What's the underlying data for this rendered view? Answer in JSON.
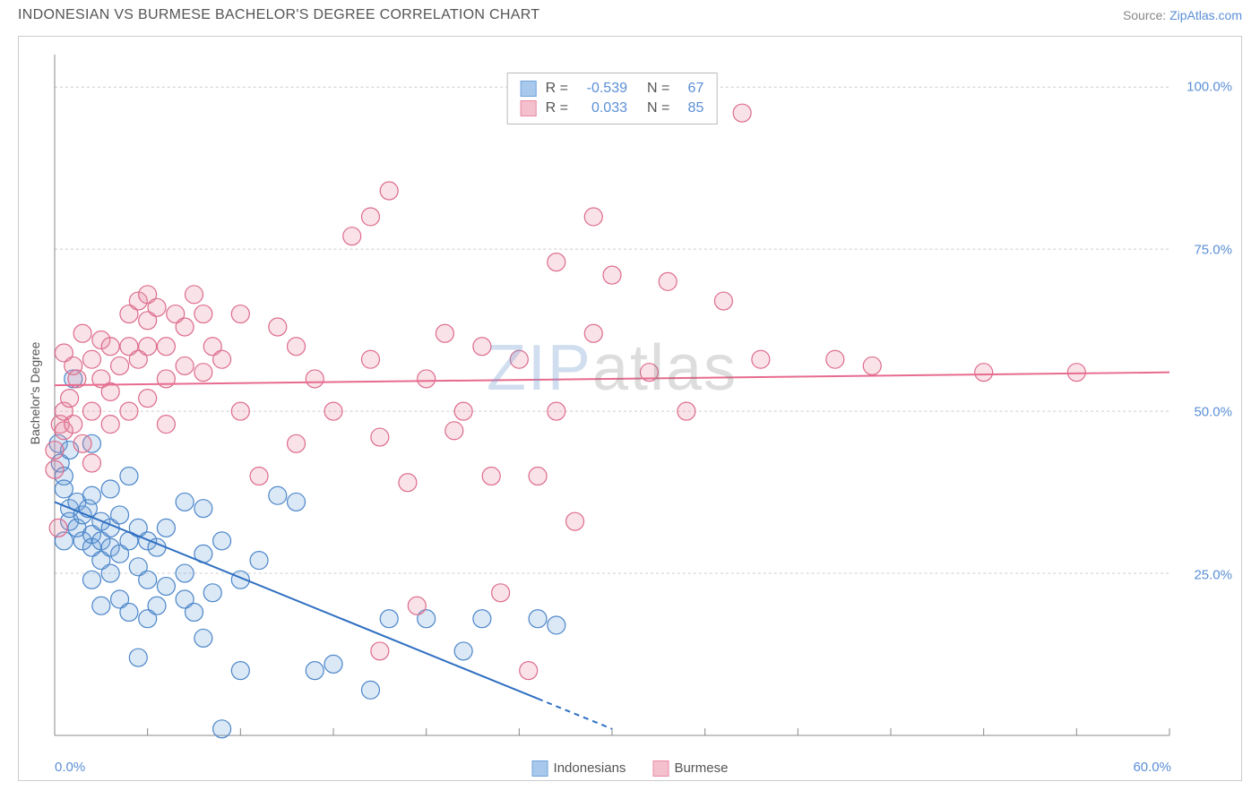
{
  "header": {
    "title": "INDONESIAN VS BURMESE BACHELOR'S DEGREE CORRELATION CHART",
    "source_label": "Source: ",
    "source_name": "ZipAtlas.com"
  },
  "chart": {
    "type": "scatter",
    "ylabel": "Bachelor's Degree",
    "background_color": "#ffffff",
    "border_color": "#cccccc",
    "grid_color": "#cccccc",
    "grid_dash": "3,3",
    "axis_color": "#888888",
    "tick_label_color": "#5b8fd6",
    "label_color": "#555555",
    "label_fontsize": 14,
    "tick_fontsize": 15,
    "xlim": [
      0,
      60
    ],
    "ylim": [
      0,
      105
    ],
    "x_ticks": [
      0,
      5,
      10,
      15,
      20,
      25,
      30,
      35,
      40,
      45,
      50,
      55,
      60
    ],
    "x_tick_labels": {
      "0": "0.0%",
      "60": "60.0%"
    },
    "y_gridlines": [
      25,
      50,
      75,
      100
    ],
    "y_tick_labels": {
      "25": "25.0%",
      "50": "50.0%",
      "75": "75.0%",
      "100": "100.0%"
    },
    "watermark": {
      "part1": "ZIP",
      "part2": "atlas"
    },
    "marker_radius": 10,
    "marker_border_width": 1.2,
    "marker_fill_opacity": 0.25,
    "line_width": 2,
    "bottom_legend": [
      {
        "label": "Indonesians",
        "fill": "#a8c8ec",
        "border": "#6fa4dd"
      },
      {
        "label": "Burmese",
        "fill": "#f4c0cd",
        "border": "#e98ba5"
      }
    ],
    "stats_box": {
      "border_color": "#bbbbbb",
      "rows": [
        {
          "swatch_fill": "#a8c8ec",
          "swatch_border": "#6fa4dd",
          "r_label": "R =",
          "r_value": "-0.539",
          "n_label": "N =",
          "n_value": "67"
        },
        {
          "swatch_fill": "#f4c0cd",
          "swatch_border": "#e98ba5",
          "r_label": "R =",
          "r_value": "0.033",
          "n_label": "N =",
          "n_value": "85"
        }
      ]
    },
    "series": [
      {
        "name": "Indonesians",
        "marker_fill": "#6fa4dd",
        "marker_border": "#4a85c9",
        "line_color": "#2f6fc1",
        "trend": {
          "x1": 0,
          "y1": 36,
          "x2": 30,
          "y2": 1,
          "dash_after_x": 26
        },
        "points": [
          [
            0.2,
            45
          ],
          [
            0.3,
            42
          ],
          [
            0.5,
            40
          ],
          [
            0.5,
            38
          ],
          [
            0.8,
            44
          ],
          [
            0.8,
            35
          ],
          [
            0.8,
            33
          ],
          [
            0.5,
            30
          ],
          [
            1.0,
            55
          ],
          [
            1.2,
            36
          ],
          [
            1.2,
            32
          ],
          [
            1.5,
            34
          ],
          [
            1.5,
            30
          ],
          [
            1.8,
            35
          ],
          [
            2.0,
            45
          ],
          [
            2.0,
            37
          ],
          [
            2.0,
            31
          ],
          [
            2.0,
            29
          ],
          [
            2.0,
            24
          ],
          [
            2.5,
            33
          ],
          [
            2.5,
            30
          ],
          [
            2.5,
            27
          ],
          [
            2.5,
            20
          ],
          [
            3.0,
            38
          ],
          [
            3.0,
            32
          ],
          [
            3.0,
            29
          ],
          [
            3.0,
            25
          ],
          [
            3.5,
            34
          ],
          [
            3.5,
            28
          ],
          [
            3.5,
            21
          ],
          [
            4.0,
            40
          ],
          [
            4.0,
            30
          ],
          [
            4.0,
            19
          ],
          [
            4.5,
            32
          ],
          [
            4.5,
            26
          ],
          [
            4.5,
            12
          ],
          [
            5.0,
            30
          ],
          [
            5.0,
            24
          ],
          [
            5.0,
            18
          ],
          [
            5.5,
            29
          ],
          [
            5.5,
            20
          ],
          [
            6.0,
            32
          ],
          [
            6.0,
            23
          ],
          [
            7.0,
            36
          ],
          [
            7.0,
            25
          ],
          [
            7.0,
            21
          ],
          [
            7.5,
            19
          ],
          [
            8.0,
            35
          ],
          [
            8.0,
            28
          ],
          [
            8.0,
            15
          ],
          [
            8.5,
            22
          ],
          [
            9.0,
            30
          ],
          [
            9.0,
            1
          ],
          [
            10.0,
            24
          ],
          [
            10.0,
            10
          ],
          [
            11.0,
            27
          ],
          [
            12.0,
            37
          ],
          [
            13.0,
            36
          ],
          [
            14.0,
            10
          ],
          [
            15.0,
            11
          ],
          [
            17.0,
            7
          ],
          [
            18.0,
            18
          ],
          [
            20.0,
            18
          ],
          [
            22.0,
            13
          ],
          [
            23.0,
            18
          ],
          [
            26.0,
            18
          ],
          [
            27.0,
            17
          ]
        ]
      },
      {
        "name": "Burmese",
        "marker_fill": "#e98ba5",
        "marker_border": "#dd6a8b",
        "line_color": "#e76b8f",
        "trend": {
          "x1": 0,
          "y1": 54,
          "x2": 60,
          "y2": 56
        },
        "points": [
          [
            0.0,
            44
          ],
          [
            0.0,
            41
          ],
          [
            0.2,
            32
          ],
          [
            0.3,
            48
          ],
          [
            0.5,
            47
          ],
          [
            0.5,
            50
          ],
          [
            0.5,
            59
          ],
          [
            0.8,
            52
          ],
          [
            1.0,
            57
          ],
          [
            1.0,
            48
          ],
          [
            1.2,
            55
          ],
          [
            1.5,
            62
          ],
          [
            1.5,
            45
          ],
          [
            2.0,
            58
          ],
          [
            2.0,
            50
          ],
          [
            2.0,
            42
          ],
          [
            2.5,
            61
          ],
          [
            2.5,
            55
          ],
          [
            3.0,
            60
          ],
          [
            3.0,
            53
          ],
          [
            3.0,
            48
          ],
          [
            3.5,
            57
          ],
          [
            4.0,
            65
          ],
          [
            4.0,
            60
          ],
          [
            4.0,
            50
          ],
          [
            4.5,
            67
          ],
          [
            4.5,
            58
          ],
          [
            5.0,
            68
          ],
          [
            5.0,
            60
          ],
          [
            5.0,
            52
          ],
          [
            5.0,
            64
          ],
          [
            5.5,
            66
          ],
          [
            6.0,
            60
          ],
          [
            6.0,
            55
          ],
          [
            6.0,
            48
          ],
          [
            6.5,
            65
          ],
          [
            7.0,
            63
          ],
          [
            7.0,
            57
          ],
          [
            7.5,
            68
          ],
          [
            8.0,
            65
          ],
          [
            8.0,
            56
          ],
          [
            8.5,
            60
          ],
          [
            9.0,
            58
          ],
          [
            10.0,
            65
          ],
          [
            10.0,
            50
          ],
          [
            11.0,
            40
          ],
          [
            12.0,
            63
          ],
          [
            13.0,
            60
          ],
          [
            13.0,
            45
          ],
          [
            14.0,
            55
          ],
          [
            15.0,
            50
          ],
          [
            16.0,
            77
          ],
          [
            17.0,
            80
          ],
          [
            17.0,
            58
          ],
          [
            17.5,
            13
          ],
          [
            17.5,
            46
          ],
          [
            18.0,
            84
          ],
          [
            19.0,
            39
          ],
          [
            19.5,
            20
          ],
          [
            20.0,
            55
          ],
          [
            21.0,
            62
          ],
          [
            21.5,
            47
          ],
          [
            22.0,
            50
          ],
          [
            23.0,
            60
          ],
          [
            23.5,
            40
          ],
          [
            24.0,
            22
          ],
          [
            25.0,
            58
          ],
          [
            25.5,
            10
          ],
          [
            26.0,
            40
          ],
          [
            27.0,
            73
          ],
          [
            27.0,
            50
          ],
          [
            28.0,
            33
          ],
          [
            29.0,
            80
          ],
          [
            29.0,
            62
          ],
          [
            30.0,
            71
          ],
          [
            32.0,
            56
          ],
          [
            33.0,
            70
          ],
          [
            34.0,
            50
          ],
          [
            36.0,
            67
          ],
          [
            37.0,
            96
          ],
          [
            38.0,
            58
          ],
          [
            42.0,
            58
          ],
          [
            44.0,
            57
          ],
          [
            50.0,
            56
          ],
          [
            55.0,
            56
          ]
        ]
      }
    ]
  }
}
